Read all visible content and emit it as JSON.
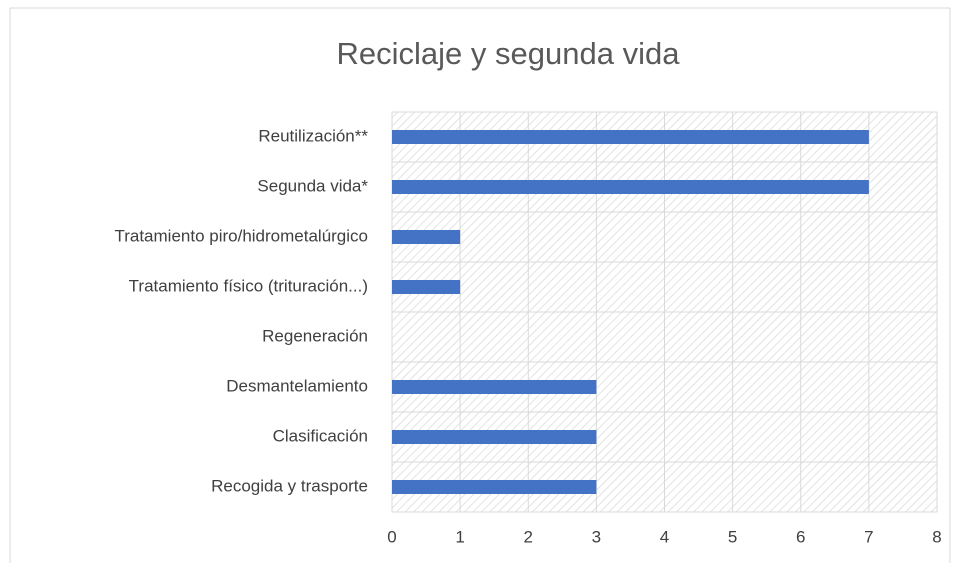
{
  "chart_data": {
    "type": "bar",
    "orientation": "horizontal",
    "title": "Reciclaje y segunda vida",
    "categories": [
      "Reutilización**",
      "Segunda vida*",
      "Tratamiento piro/hidrometalúrgico",
      "Tratamiento físico (trituración...)",
      "Regeneración",
      "Desmantelamiento",
      "Clasificación",
      "Recogida y trasporte"
    ],
    "values": [
      7,
      7,
      1,
      1,
      0,
      3,
      3,
      3
    ],
    "color": "#4472c4",
    "xlim": [
      0,
      8
    ],
    "xticks": [
      0,
      1,
      2,
      3,
      4,
      5,
      6,
      7,
      8
    ],
    "grid": true
  }
}
